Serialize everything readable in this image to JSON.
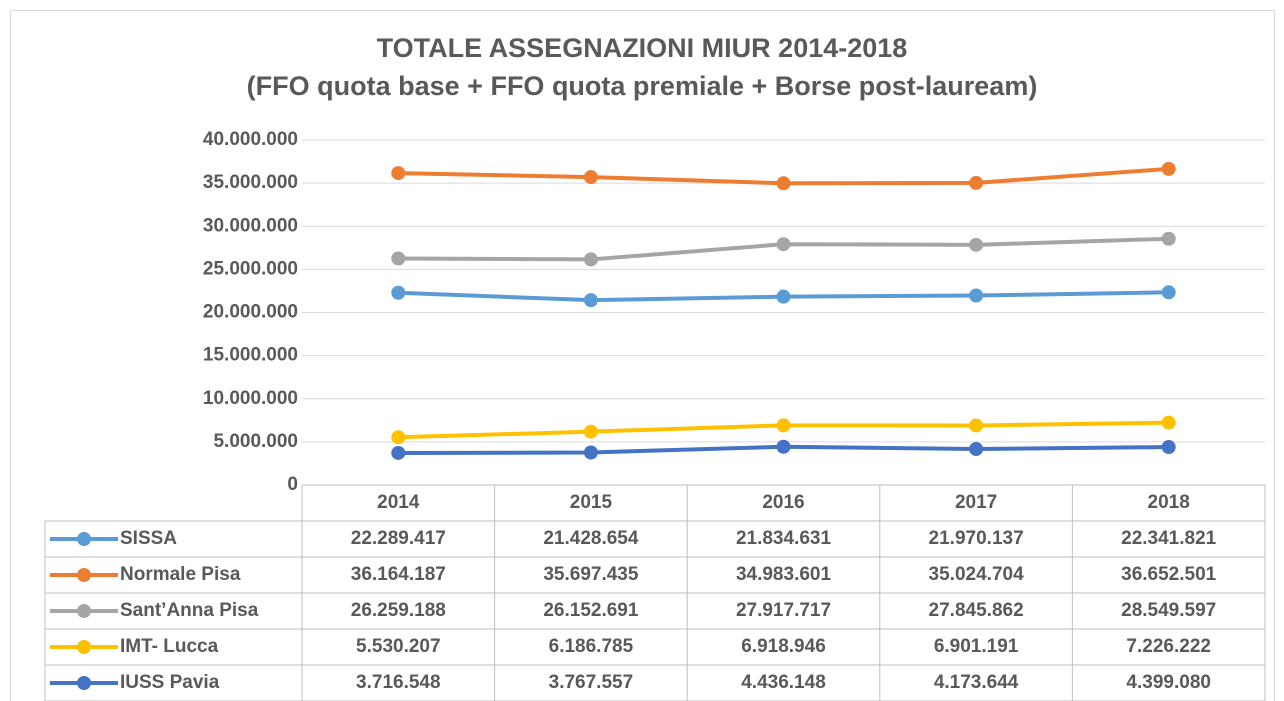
{
  "chart_data": {
    "type": "line",
    "title": "TOTALE ASSEGNAZIONI MIUR 2014-2018",
    "subtitle": "(FFO quota base + FFO quota premiale + Borse post-lauream)",
    "categories": [
      "2014",
      "2015",
      "2016",
      "2017",
      "2018"
    ],
    "series": [
      {
        "name": "SISSA",
        "color": "#5b9bd5",
        "values": [
          22289417,
          21428654,
          21834631,
          21970137,
          22341821
        ],
        "value_labels": [
          "22.289.417",
          "21.428.654",
          "21.834.631",
          "21.970.137",
          "22.341.821"
        ]
      },
      {
        "name": "Normale Pisa",
        "color": "#ed7d31",
        "values": [
          36164187,
          35697435,
          34983601,
          35024704,
          36652501
        ],
        "value_labels": [
          "36.164.187",
          "35.697.435",
          "34.983.601",
          "35.024.704",
          "36.652.501"
        ]
      },
      {
        "name": "Sant’Anna Pisa",
        "color": "#a5a5a5",
        "values": [
          26259188,
          26152691,
          27917717,
          27845862,
          28549597
        ],
        "value_labels": [
          "26.259.188",
          "26.152.691",
          "27.917.717",
          "27.845.862",
          "28.549.597"
        ]
      },
      {
        "name": "IMT- Lucca",
        "color": "#ffc000",
        "values": [
          5530207,
          6186785,
          6918946,
          6901191,
          7226222
        ],
        "value_labels": [
          "5.530.207",
          "6.186.785",
          "6.918.946",
          "6.901.191",
          "7.226.222"
        ]
      },
      {
        "name": "IUSS Pavia",
        "color": "#4472c4",
        "values": [
          3716548,
          3767557,
          4436148,
          4173644,
          4399080
        ],
        "value_labels": [
          "3.716.548",
          "3.767.557",
          "4.436.148",
          "4.173.644",
          "4.399.080"
        ]
      }
    ],
    "ylim": [
      0,
      40000000
    ],
    "yticks": [
      0,
      {
        "value": 5000000,
        "label": "5.000.000"
      },
      {
        "value": 10000000,
        "label": "10.000.000"
      },
      {
        "value": 15000000,
        "label": "15.000.000"
      },
      {
        "value": 20000000,
        "label": "20.000.000"
      },
      {
        "value": 25000000,
        "label": "25.000.000"
      },
      {
        "value": 30000000,
        "label": "30.000.000"
      },
      {
        "value": 35000000,
        "label": "35.000.000"
      },
      {
        "value": 40000000,
        "label": "40.000.000"
      }
    ],
    "grid": true
  }
}
